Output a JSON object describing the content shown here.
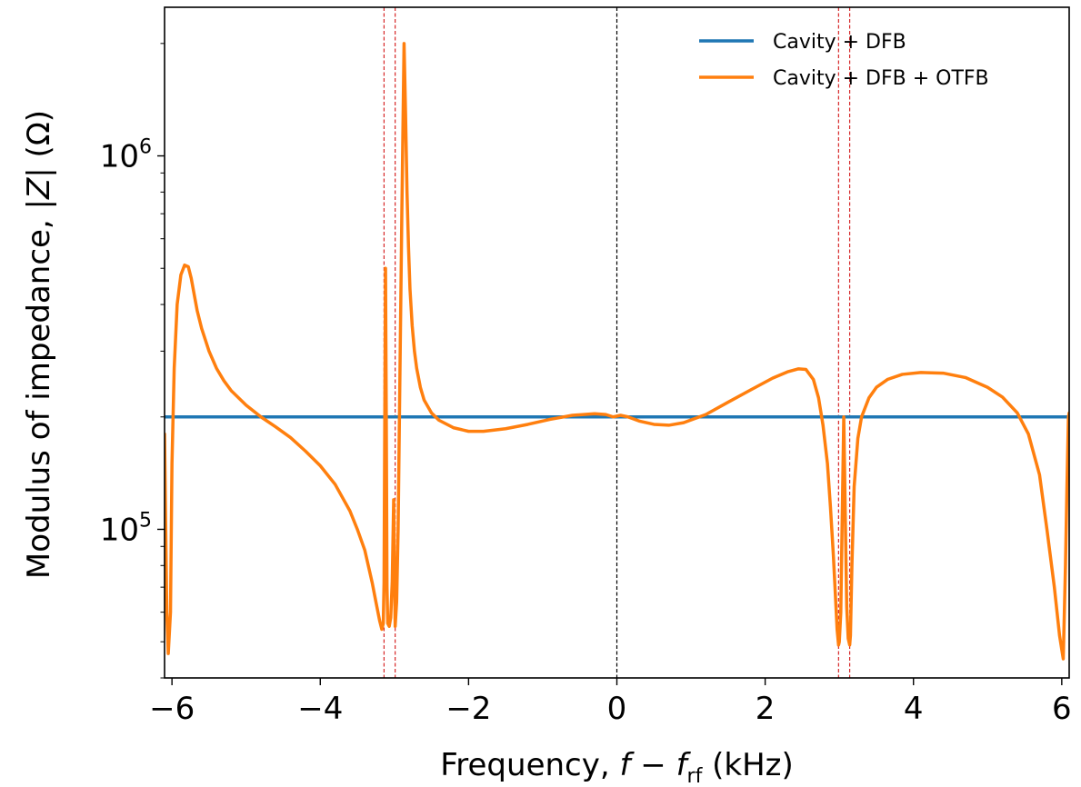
{
  "chart_data": {
    "type": "line",
    "title": "",
    "xlabel": "Frequency, f − f_rf (kHz)",
    "xlabel_parts": {
      "prefix": "Frequency, ",
      "f": "f",
      "minus": " − ",
      "frf": "f",
      "sub": "rf",
      "suffix": " (kHz)"
    },
    "ylabel": "Modulus of impedance, |Z| (Ω)",
    "ylabel_parts": {
      "prefix": "Modulus of impedance, |",
      "z": "Z",
      "suffix": "| (Ω)"
    },
    "xlim": [
      -6.1,
      6.1
    ],
    "ylim": [
      40000,
      2500000
    ],
    "yscale": "log",
    "xticks": [
      -6,
      -4,
      -2,
      0,
      2,
      4,
      6
    ],
    "xtick_labels": [
      "−6",
      "−4",
      "−2",
      "0",
      "2",
      "4",
      "6"
    ],
    "yticks": [
      100000,
      1000000
    ],
    "ytick_labels": [
      {
        "base": "10",
        "exp": "5"
      },
      {
        "base": "10",
        "exp": "6"
      }
    ],
    "grid": false,
    "legend_position": "top-right",
    "vlines": [
      {
        "x": 0,
        "color": "#000000",
        "style": "dashed"
      },
      {
        "x": -3.14,
        "color": "#d62728",
        "style": "dashed"
      },
      {
        "x": -2.99,
        "color": "#d62728",
        "style": "dashed"
      },
      {
        "x": 2.99,
        "color": "#d62728",
        "style": "dashed"
      },
      {
        "x": 3.14,
        "color": "#d62728",
        "style": "dashed"
      }
    ],
    "series": [
      {
        "name": "Cavity + DFB",
        "color": "#1f77b4",
        "x": [
          -6.1,
          6.1
        ],
        "y": [
          200000,
          200000
        ]
      },
      {
        "name": "Cavity + DFB + OTFB",
        "color": "#ff7f0e",
        "x": [
          -6.1,
          -6.07,
          -6.05,
          -6.02,
          -6.0,
          -5.97,
          -5.93,
          -5.88,
          -5.83,
          -5.78,
          -5.74,
          -5.7,
          -5.66,
          -5.6,
          -5.5,
          -5.4,
          -5.3,
          -5.2,
          -5.0,
          -4.8,
          -4.6,
          -4.4,
          -4.2,
          -4.0,
          -3.8,
          -3.6,
          -3.5,
          -3.4,
          -3.3,
          -3.25,
          -3.2,
          -3.17,
          -3.15,
          -3.14,
          -3.13,
          -3.12,
          -3.11,
          -3.1,
          -3.09,
          -3.07,
          -3.05,
          -3.03,
          -3.01,
          -2.99,
          -2.97,
          -2.95,
          -2.93,
          -2.9,
          -2.87,
          -2.85,
          -2.83,
          -2.81,
          -2.79,
          -2.76,
          -2.73,
          -2.7,
          -2.65,
          -2.6,
          -2.5,
          -2.4,
          -2.2,
          -2.0,
          -1.8,
          -1.5,
          -1.2,
          -0.9,
          -0.6,
          -0.3,
          -0.15,
          -0.05,
          0.0,
          0.05,
          0.15,
          0.3,
          0.5,
          0.7,
          0.9,
          1.2,
          1.5,
          1.8,
          2.1,
          2.3,
          2.45,
          2.55,
          2.65,
          2.72,
          2.78,
          2.84,
          2.88,
          2.92,
          2.95,
          2.97,
          2.99,
          3.0,
          3.02,
          3.04,
          3.06,
          3.08,
          3.1,
          3.12,
          3.14,
          3.15,
          3.17,
          3.2,
          3.25,
          3.3,
          3.4,
          3.5,
          3.65,
          3.85,
          4.1,
          4.4,
          4.7,
          5.0,
          5.2,
          5.4,
          5.55,
          5.7,
          5.8,
          5.9,
          5.97,
          6.02,
          6.05,
          6.07,
          6.09,
          6.1
        ],
        "y": [
          180000,
          60000,
          46500,
          60000,
          150000,
          270000,
          400000,
          480000,
          510000,
          505000,
          470000,
          425000,
          385000,
          345000,
          300000,
          270000,
          250000,
          235000,
          215000,
          200000,
          188000,
          176000,
          162000,
          148000,
          132000,
          112000,
          100000,
          88000,
          72000,
          64000,
          57000,
          54000,
          56000,
          72000,
          200000,
          500000,
          200000,
          70000,
          56000,
          55000,
          58000,
          72000,
          120000,
          55000,
          64000,
          100000,
          220000,
          700000,
          2000000,
          1300000,
          800000,
          570000,
          440000,
          350000,
          300000,
          270000,
          240000,
          222000,
          205000,
          196000,
          187000,
          183000,
          183000,
          186000,
          191000,
          197000,
          202000,
          204000,
          203000,
          200000,
          201000,
          202000,
          200000,
          195000,
          191000,
          190000,
          193000,
          203000,
          219000,
          236000,
          254000,
          264000,
          269000,
          268000,
          252000,
          225000,
          190000,
          150000,
          115000,
          85000,
          65000,
          54000,
          49000,
          50000,
          60000,
          110000,
          200000,
          110000,
          62000,
          51000,
          49000,
          52000,
          80000,
          130000,
          175000,
          200000,
          225000,
          240000,
          252000,
          260000,
          263000,
          262000,
          255000,
          240000,
          226000,
          205000,
          180000,
          140000,
          100000,
          70000,
          52000,
          45000,
          80000,
          130000,
          200000,
          205000
        ]
      }
    ]
  }
}
